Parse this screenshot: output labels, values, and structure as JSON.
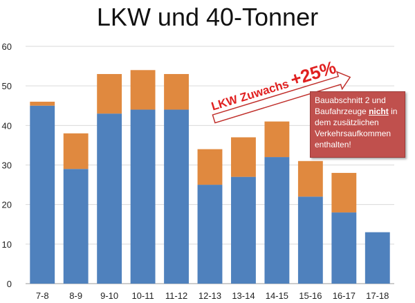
{
  "chart_data": {
    "type": "bar",
    "stacked": true,
    "title": "LKW und 40-Tonner",
    "xlabel": "",
    "ylabel": "",
    "categories": [
      "7-8",
      "8-9",
      "9-10",
      "10-11",
      "11-12",
      "12-13",
      "13-14",
      "14-15",
      "15-16",
      "16-17",
      "17-18"
    ],
    "series": [
      {
        "values": [
          45,
          29,
          43,
          44,
          44,
          25,
          27,
          32,
          22,
          18,
          13
        ],
        "color": "#4f81bd"
      },
      {
        "values": [
          1,
          9,
          10,
          10,
          9,
          9,
          10,
          9,
          9,
          10,
          0
        ],
        "color": "#e0893f"
      }
    ],
    "ylim": [
      0,
      60
    ],
    "yticks": [
      0,
      10,
      20,
      30,
      40,
      50,
      60
    ],
    "grid": true,
    "annotations": {
      "arrow_text_part1": "LKW Zuwachs ",
      "arrow_text_part2": "+25%",
      "callout_line1": "Bauabschnitt 2 und",
      "callout_line2a": "Baufahrzeuge ",
      "callout_line2b": "nicht",
      "callout_line2c": " in",
      "callout_line3": "dem zusätzlichen",
      "callout_line4": "Verkehrsaufkommen",
      "callout_line5": "enthalten!"
    }
  }
}
